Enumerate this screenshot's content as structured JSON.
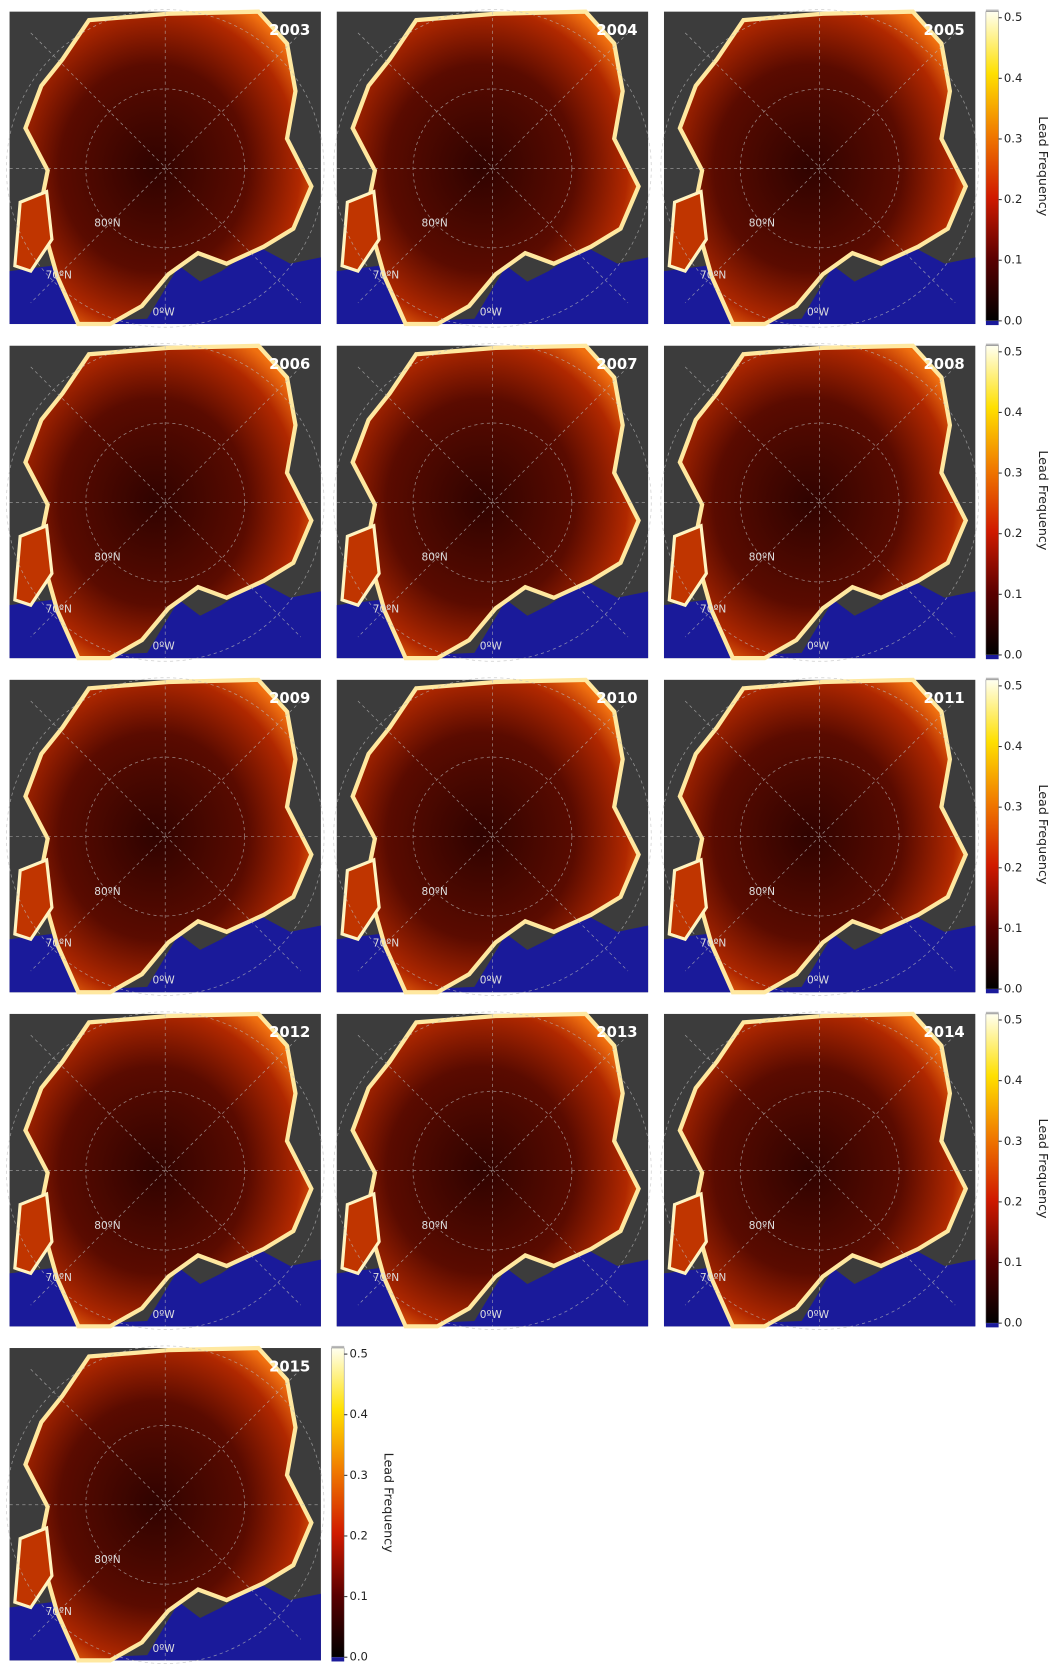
{
  "panels": [
    {
      "year": "2003"
    },
    {
      "year": "2004"
    },
    {
      "year": "2005"
    },
    {
      "year": "2006"
    },
    {
      "year": "2007"
    },
    {
      "year": "2008"
    },
    {
      "year": "2009"
    },
    {
      "year": "2010"
    },
    {
      "year": "2011"
    },
    {
      "year": "2012"
    },
    {
      "year": "2013"
    },
    {
      "year": "2014"
    },
    {
      "year": "2015"
    }
  ],
  "map_labels": {
    "lat_80": "80ºN",
    "lat_70": "70ºN",
    "lon_0": "0ºW"
  },
  "colorbar": {
    "label": "Lead Frequency",
    "clim": [
      0,
      0.51
    ],
    "ticks": [
      {
        "value": 0,
        "label": "0.0"
      },
      {
        "value": 0.1,
        "label": "0.1"
      },
      {
        "value": 0.2,
        "label": "0.2"
      },
      {
        "value": 0.3,
        "label": "0.3"
      },
      {
        "value": 0.4,
        "label": "0.4"
      },
      {
        "value": 0.5,
        "label": "0.5"
      }
    ]
  }
}
